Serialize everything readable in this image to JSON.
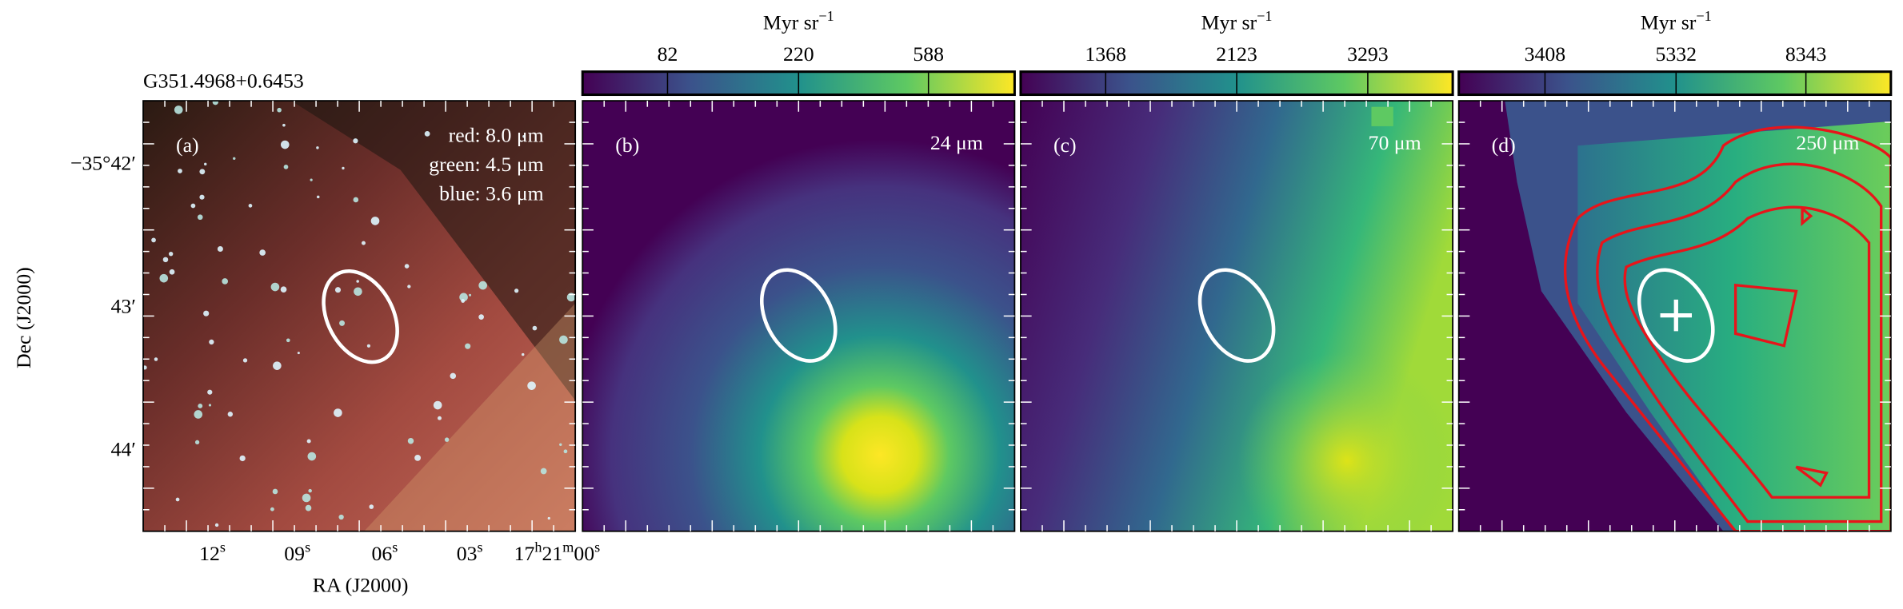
{
  "source": "G351.4968+0.6453",
  "colorbars": [
    {
      "unit": {
        "base": "Myr sr",
        "sup": "−1"
      },
      "ticks": [
        "82",
        "220",
        "588"
      ]
    },
    {
      "unit": {
        "base": "Myr sr",
        "sup": "−1"
      },
      "ticks": [
        "1368",
        "2123",
        "3293"
      ]
    },
    {
      "unit": {
        "base": "Myr sr",
        "sup": "−1"
      },
      "ticks": [
        "3408",
        "5332",
        "8343"
      ]
    }
  ],
  "panels": [
    {
      "label": "(a)",
      "bands": [
        "red: 8.0 μm",
        "green: 4.5 μm",
        "blue: 3.6 μm"
      ]
    },
    {
      "label": "(b)",
      "bands": [
        "24 μm"
      ]
    },
    {
      "label": "(c)",
      "bands": [
        "70 μm"
      ]
    },
    {
      "label": "(d)",
      "bands": [
        "250 μm"
      ]
    }
  ],
  "y_axis": {
    "title": "Dec (J2000)",
    "ticks": [
      "−35°42′",
      "43′",
      "44′"
    ]
  },
  "x_axis": {
    "title": "RA (J2000)",
    "ticks": [
      [
        "12",
        "s"
      ],
      [
        "09",
        "s"
      ],
      [
        "06",
        "s"
      ],
      [
        "03",
        "s"
      ],
      [
        "17",
        "h",
        "21",
        "m",
        "00",
        "s"
      ]
    ]
  }
}
